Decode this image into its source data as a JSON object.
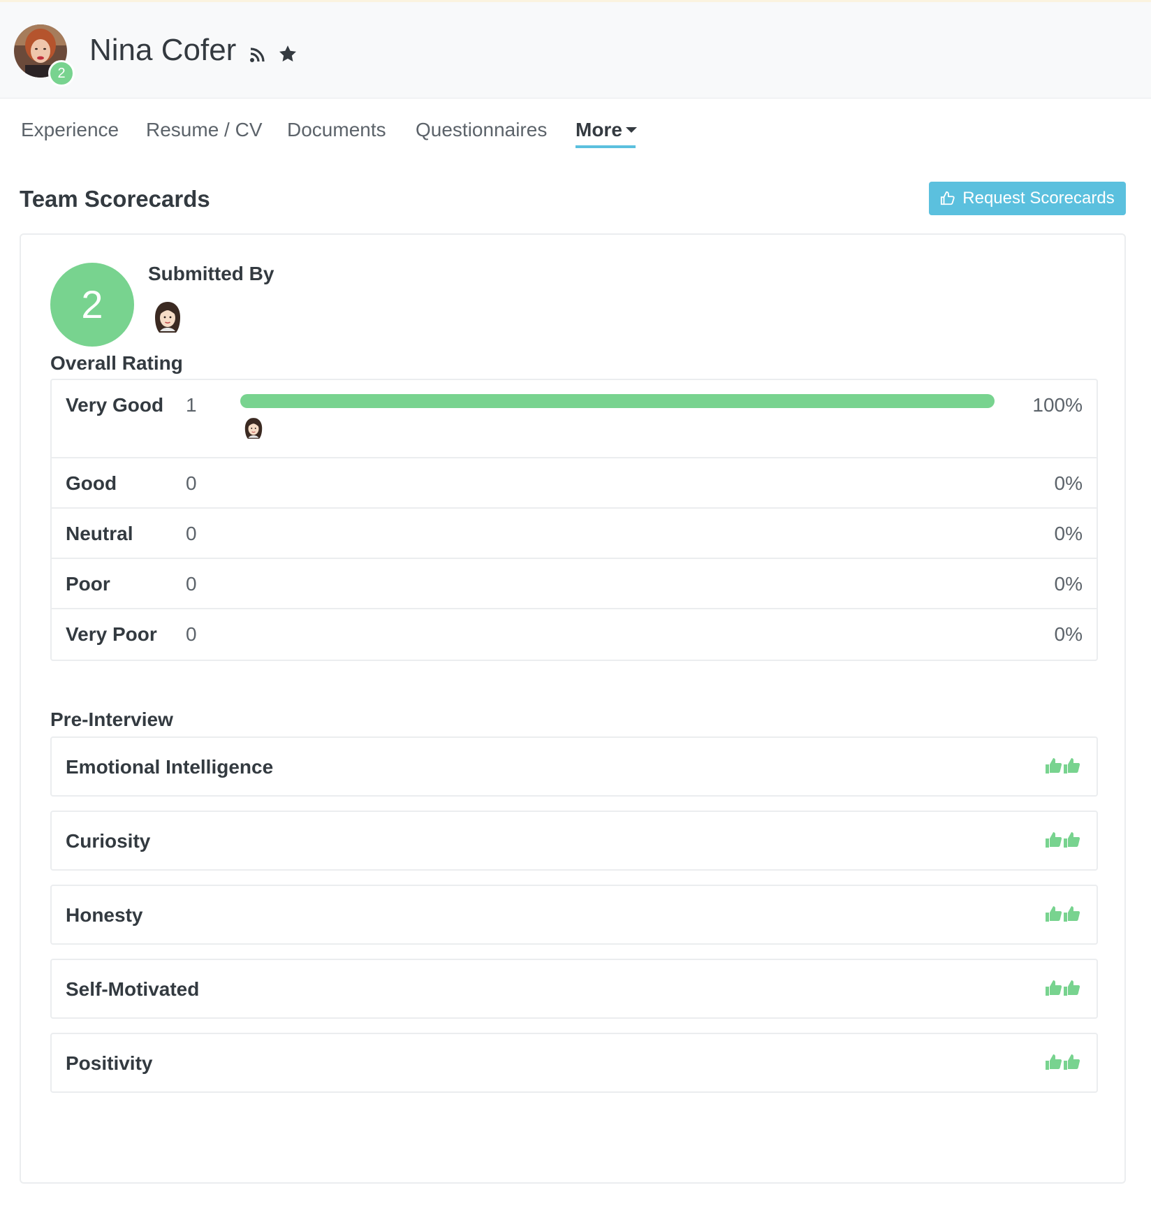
{
  "header": {
    "name": "Nina Cofer",
    "avatar_badge": "2",
    "icons": [
      "rss-icon",
      "star-icon"
    ]
  },
  "tabs": [
    {
      "label": "Experience"
    },
    {
      "label": "Resume / CV"
    },
    {
      "label": "Documents"
    },
    {
      "label": "Questionnaires"
    },
    {
      "label": "More",
      "active": true
    }
  ],
  "scorecards": {
    "title": "Team Scorecards",
    "request_button": "Request Scorecards",
    "score": "2",
    "submitted_by_label": "Submitted By",
    "overall_rating_label": "Overall Rating",
    "ratings": [
      {
        "label": "Very Good",
        "count": "1",
        "percent": "100%",
        "fraction": 1.0
      },
      {
        "label": "Good",
        "count": "0",
        "percent": "0%",
        "fraction": 0
      },
      {
        "label": "Neutral",
        "count": "0",
        "percent": "0%",
        "fraction": 0
      },
      {
        "label": "Poor",
        "count": "0",
        "percent": "0%",
        "fraction": 0
      },
      {
        "label": "Very Poor",
        "count": "0",
        "percent": "0%",
        "fraction": 0
      }
    ],
    "pre_interview_label": "Pre-Interview",
    "attributes": [
      {
        "label": "Emotional Intelligence",
        "icon": "thumbs-up-icon"
      },
      {
        "label": "Curiosity",
        "icon": "thumbs-up-icon"
      },
      {
        "label": "Honesty",
        "icon": "thumbs-up-icon"
      },
      {
        "label": "Self-Motivated",
        "icon": "thumbs-up-icon"
      },
      {
        "label": "Positivity",
        "icon": "thumbs-up-icon"
      }
    ]
  },
  "colors": {
    "accent": "#5bc0de",
    "rating_green": "#78d38f",
    "text": "#333a40"
  }
}
